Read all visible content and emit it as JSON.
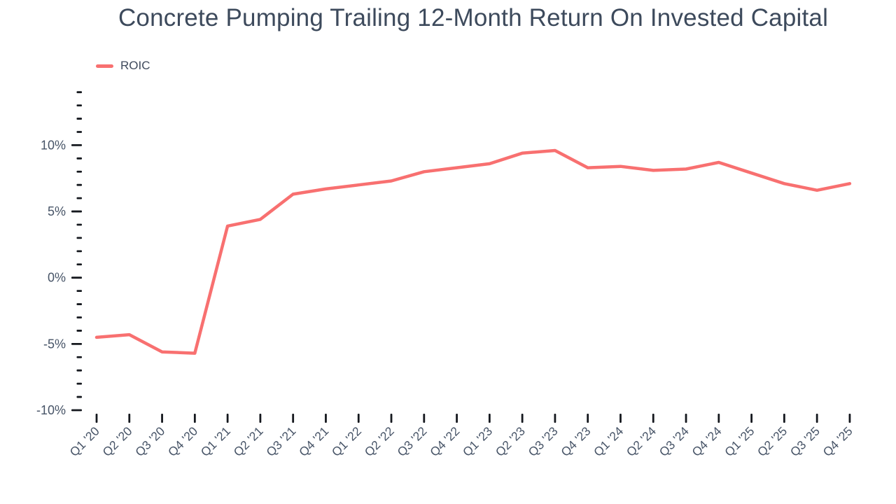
{
  "chart_data": {
    "type": "line",
    "title": "Concrete Pumping Trailing 12-Month Return On Invested Capital",
    "legend": {
      "position": "top-left",
      "entries": [
        {
          "label": "ROIC",
          "color": "#f87070"
        }
      ]
    },
    "categories": [
      "Q1 '20",
      "Q2 '20",
      "Q3 '20",
      "Q4 '20",
      "Q1 '21",
      "Q2 '21",
      "Q3 '21",
      "Q4 '21",
      "Q1 '22",
      "Q2 '22",
      "Q3 '22",
      "Q4 '22",
      "Q1 '23",
      "Q2 '23",
      "Q3 '23",
      "Q4 '23",
      "Q1 '24",
      "Q2 '24",
      "Q3 '24",
      "Q4 '24",
      "Q1 '25",
      "Q2 '25",
      "Q3 '25",
      "Q4 '25"
    ],
    "series": [
      {
        "name": "ROIC",
        "color": "#f87070",
        "unit": "%",
        "values": [
          -4.5,
          -4.3,
          -5.6,
          -5.7,
          3.9,
          4.4,
          6.3,
          6.7,
          7.0,
          7.3,
          8.0,
          8.3,
          8.6,
          9.4,
          9.6,
          8.3,
          8.4,
          8.1,
          8.2,
          8.7,
          7.9,
          7.1,
          6.6,
          7.1
        ]
      }
    ],
    "x_axis": {
      "tick_label_rotation_deg": -45
    },
    "y_axis": {
      "range": [
        -10,
        14
      ],
      "minor_tick_step": 1,
      "major_ticks": [
        -10,
        -5,
        0,
        5,
        10
      ],
      "major_tick_labels": [
        "-10%",
        "-5%",
        "0%",
        "5%",
        "10%"
      ]
    },
    "grid": false,
    "colors": {
      "background": "#ffffff",
      "title": "#3d4a5c",
      "axis_label": "#475467",
      "tick_mark": "#15181e",
      "line": "#f87070"
    }
  }
}
